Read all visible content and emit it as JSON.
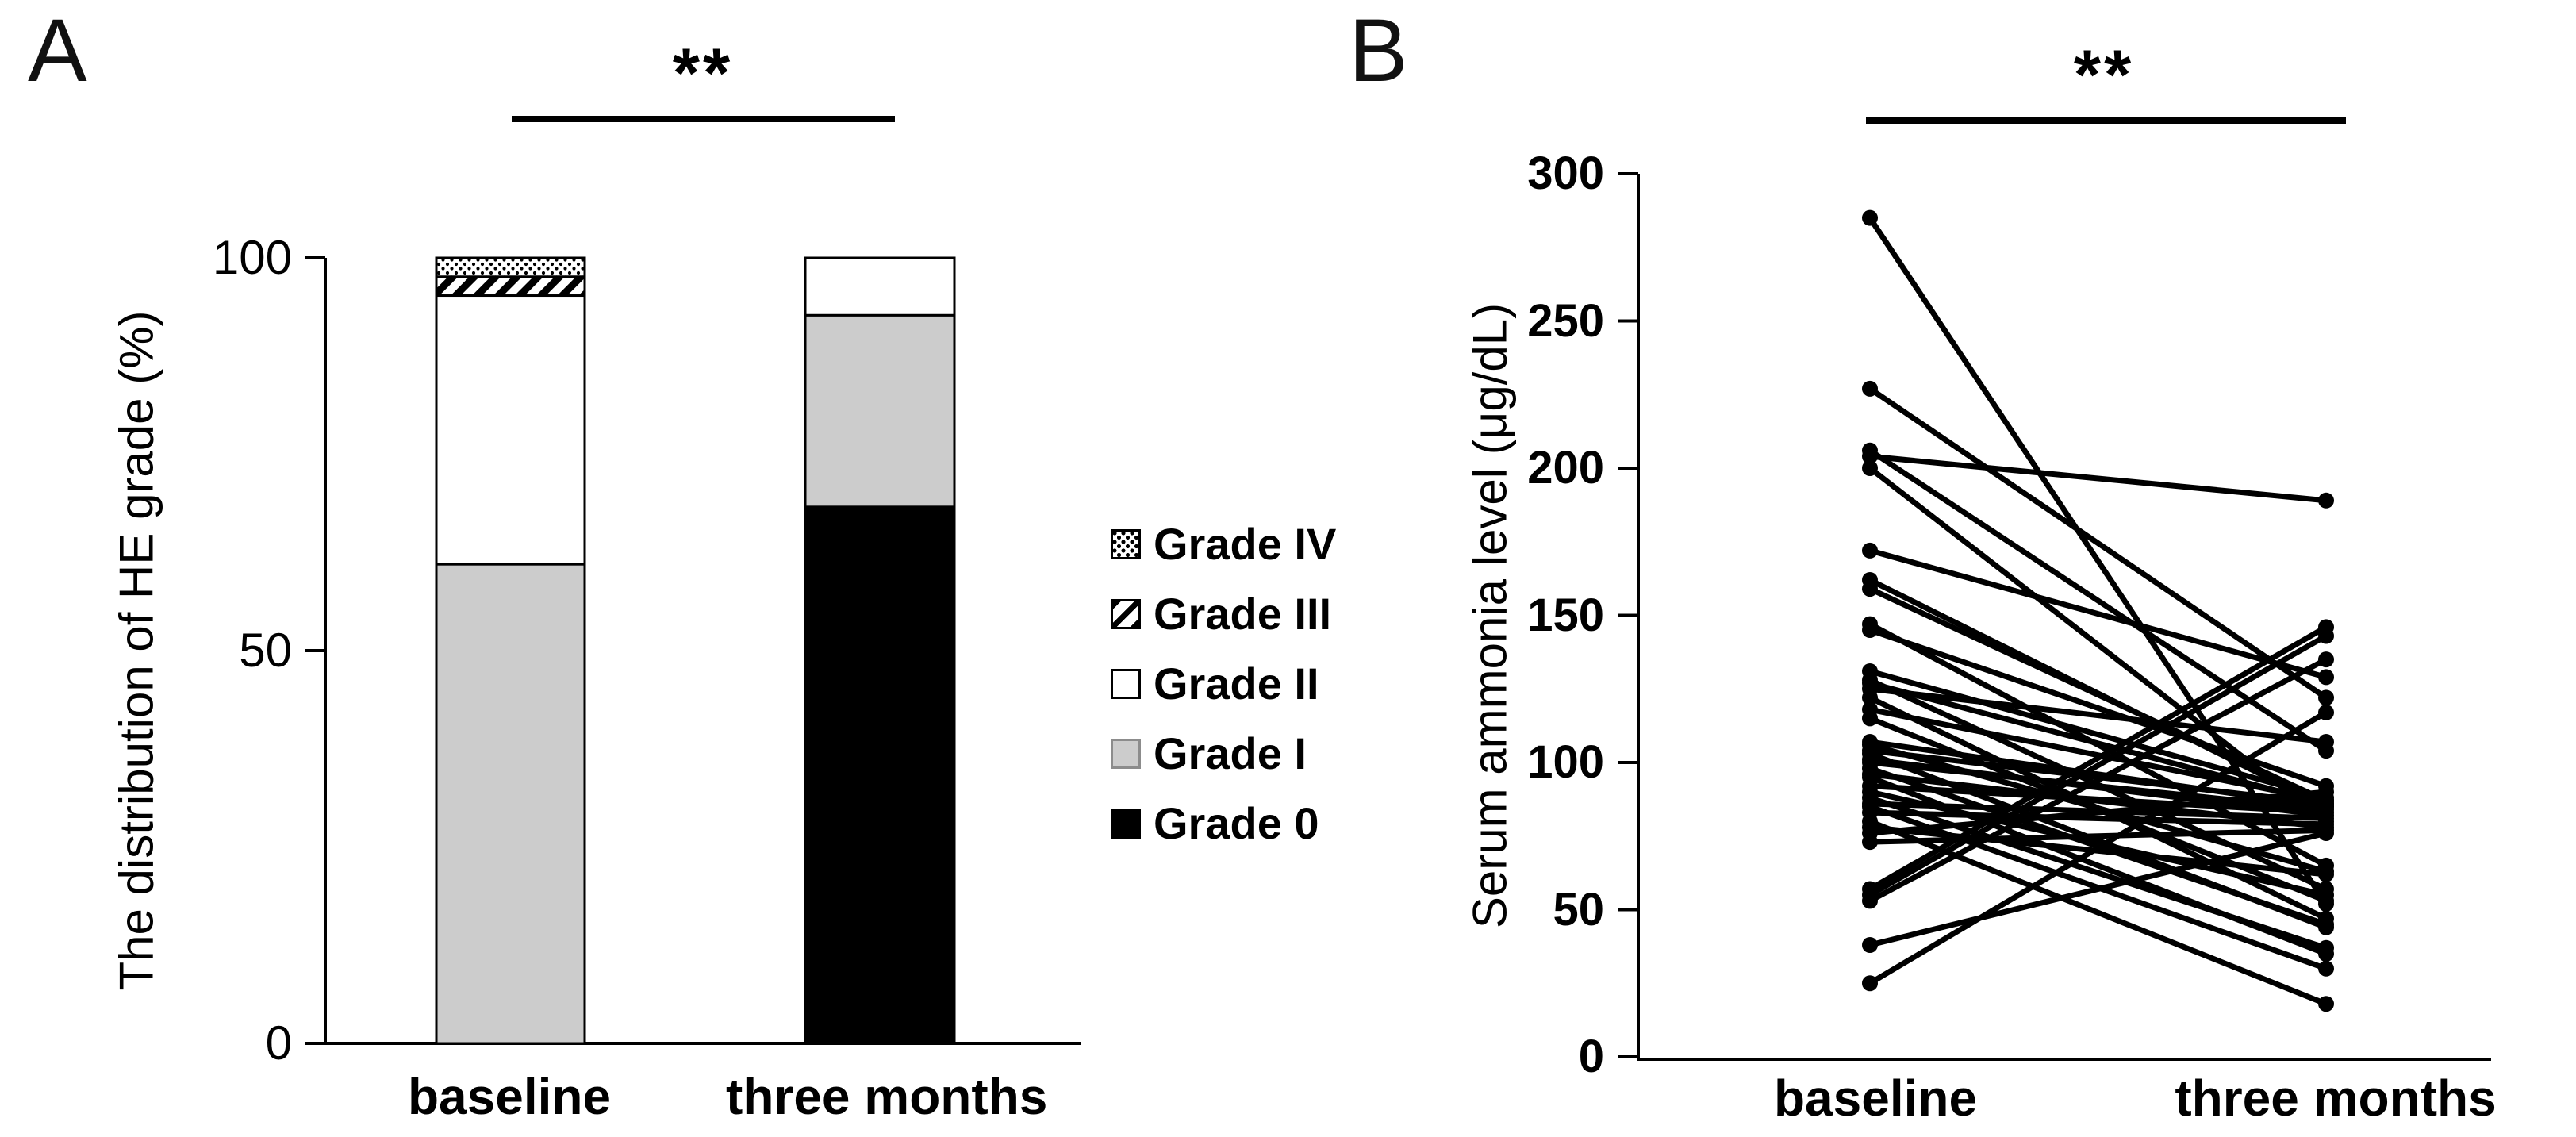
{
  "chart_data": [
    {
      "type": "bar",
      "panel_label": "A",
      "significance": "**",
      "stacked": true,
      "ylabel": "The distribution of HE grade (%)",
      "xlabel": "",
      "categories": [
        "baseline",
        "three months"
      ],
      "ylim": [
        0,
        100
      ],
      "yticks": [
        0,
        50,
        100
      ],
      "grid": false,
      "legend_position": "right",
      "series": [
        {
          "name": "Grade 0",
          "style": "black",
          "values": [
            0,
            68.3
          ]
        },
        {
          "name": "Grade I",
          "style": "gray",
          "values": [
            61.0,
            24.4
          ]
        },
        {
          "name": "Grade II",
          "style": "white",
          "values": [
            34.2,
            7.3
          ]
        },
        {
          "name": "Grade III",
          "style": "hatch",
          "values": [
            2.4,
            0
          ]
        },
        {
          "name": "Grade IV",
          "style": "dots",
          "values": [
            2.4,
            0
          ]
        }
      ],
      "legend": [
        {
          "label": "Grade IV",
          "style": "dots"
        },
        {
          "label": "Grade III",
          "style": "hatch"
        },
        {
          "label": "Grade II",
          "style": "white"
        },
        {
          "label": "Grade I",
          "style": "gray"
        },
        {
          "label": "Grade 0",
          "style": "black"
        }
      ],
      "colors": {
        "black": "#000000",
        "gray": "#cccccc",
        "white": "#ffffff",
        "stroke": "#000000"
      }
    },
    {
      "type": "line",
      "subtype": "paired-individual-trajectories",
      "panel_label": "B",
      "significance": "**",
      "ylabel": "Serum ammonia level (μg/dL)",
      "xlabel": "",
      "categories": [
        "baseline",
        "three months"
      ],
      "ylim": [
        0,
        300
      ],
      "yticks": [
        0,
        50,
        100,
        150,
        200,
        250,
        300
      ],
      "grid": false,
      "marker": "dot",
      "line_color": "#000000",
      "pairs": [
        [
          285,
          52
        ],
        [
          227,
          122
        ],
        [
          206,
          104
        ],
        [
          204,
          189
        ],
        [
          200,
          80
        ],
        [
          172,
          129
        ],
        [
          162,
          85
        ],
        [
          159,
          87
        ],
        [
          147,
          65
        ],
        [
          145,
          92
        ],
        [
          131,
          88
        ],
        [
          128,
          57
        ],
        [
          127,
          86
        ],
        [
          125,
          107
        ],
        [
          122,
          47
        ],
        [
          118,
          87
        ],
        [
          115,
          53
        ],
        [
          107,
          85
        ],
        [
          106,
          63
        ],
        [
          104,
          86
        ],
        [
          103,
          44
        ],
        [
          101,
          82
        ],
        [
          100,
          84
        ],
        [
          98,
          45
        ],
        [
          96,
          78
        ],
        [
          95,
          35
        ],
        [
          92,
          83
        ],
        [
          90,
          55
        ],
        [
          88,
          37
        ],
        [
          86,
          81
        ],
        [
          85,
          30
        ],
        [
          83,
          79
        ],
        [
          80,
          18
        ],
        [
          78,
          62
        ],
        [
          76,
          90
        ],
        [
          73,
          77
        ],
        [
          57,
          146
        ],
        [
          55,
          143
        ],
        [
          53,
          135
        ],
        [
          38,
          76
        ],
        [
          25,
          117
        ]
      ]
    }
  ]
}
